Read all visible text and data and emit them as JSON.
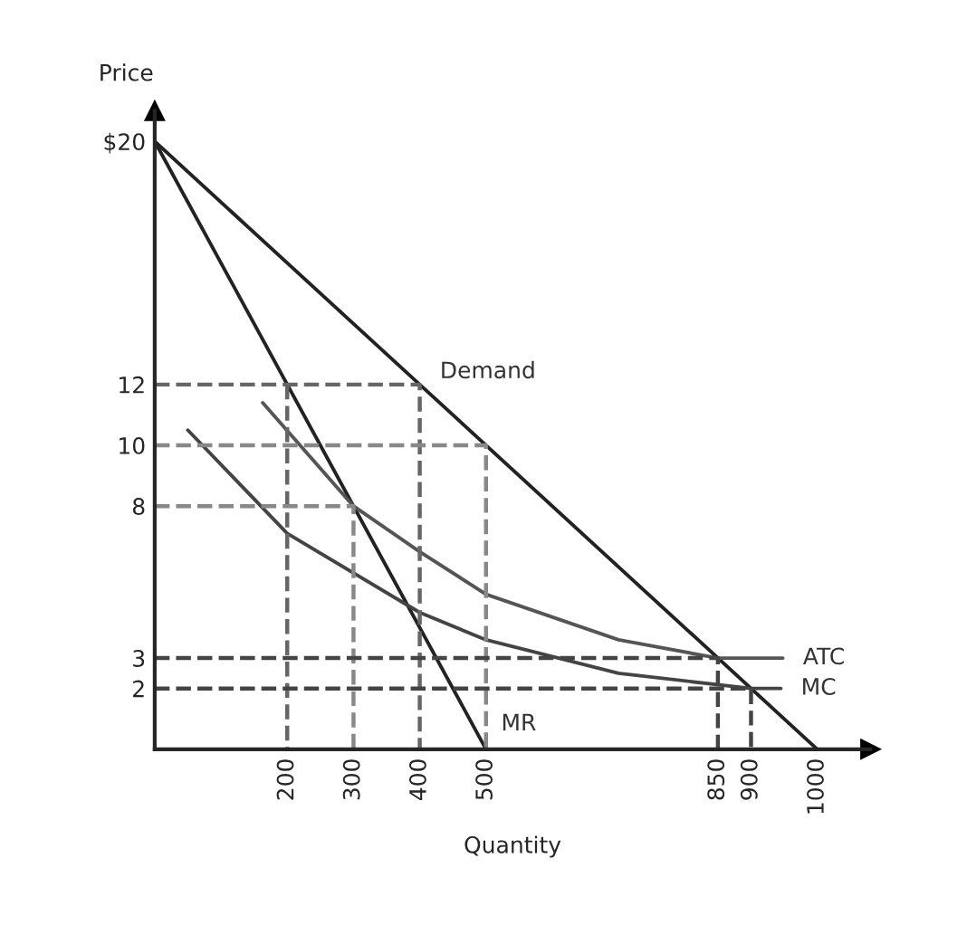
{
  "chart_data": {
    "type": "line",
    "xlabel": "Quantity",
    "ylabel": "Price",
    "xlim": [
      0,
      1080
    ],
    "ylim": [
      0,
      21
    ],
    "xticks": [
      200,
      300,
      400,
      500,
      850,
      900,
      1000
    ],
    "yticks": [
      2,
      3,
      8,
      10,
      12,
      {
        "value": 20,
        "label": "$20"
      }
    ],
    "grid": false,
    "marker": "none",
    "series": [
      {
        "name": "Demand",
        "color": "#222222",
        "x": [
          0,
          400,
          1000
        ],
        "values": [
          20,
          12,
          0
        ],
        "line_style": "solid"
      },
      {
        "name": "MR",
        "color": "#222222",
        "x": [
          0,
          500
        ],
        "values": [
          20,
          0
        ],
        "line_style": "solid"
      },
      {
        "name": "ATC",
        "color": "#555555",
        "x": [
          163,
          300,
          400,
          500,
          700,
          850,
          948
        ],
        "values": [
          11.4,
          8,
          6.5,
          5.1,
          3.6,
          3,
          3
        ],
        "line_style": "solid"
      },
      {
        "name": "MC",
        "color": "#444444",
        "x": [
          50,
          200,
          400,
          500,
          700,
          900,
          945
        ],
        "values": [
          10.5,
          7.1,
          4.5,
          3.6,
          2.5,
          2,
          2
        ],
        "line_style": "solid"
      },
      {
        "color": "#666666",
        "x": [
          0,
          400,
          400
        ],
        "values": [
          12,
          12,
          0
        ],
        "line_style": "dashed"
      },
      {
        "color": "#666666",
        "x": [
          200,
          200
        ],
        "values": [
          12,
          0
        ],
        "line_style": "dashed"
      },
      {
        "color": "#888888",
        "x": [
          0,
          500,
          500
        ],
        "values": [
          10,
          10,
          0
        ],
        "line_style": "dashed"
      },
      {
        "color": "#888888",
        "x": [
          0,
          300,
          300
        ],
        "values": [
          8,
          8,
          0
        ],
        "line_style": "dashed"
      },
      {
        "color": "#444444",
        "x": [
          0,
          850,
          850
        ],
        "values": [
          3,
          3,
          0
        ],
        "line_style": "dashed"
      },
      {
        "color": "#444444",
        "x": [
          0,
          900,
          900
        ],
        "values": [
          2,
          2,
          0
        ],
        "line_style": "dashed"
      }
    ]
  }
}
